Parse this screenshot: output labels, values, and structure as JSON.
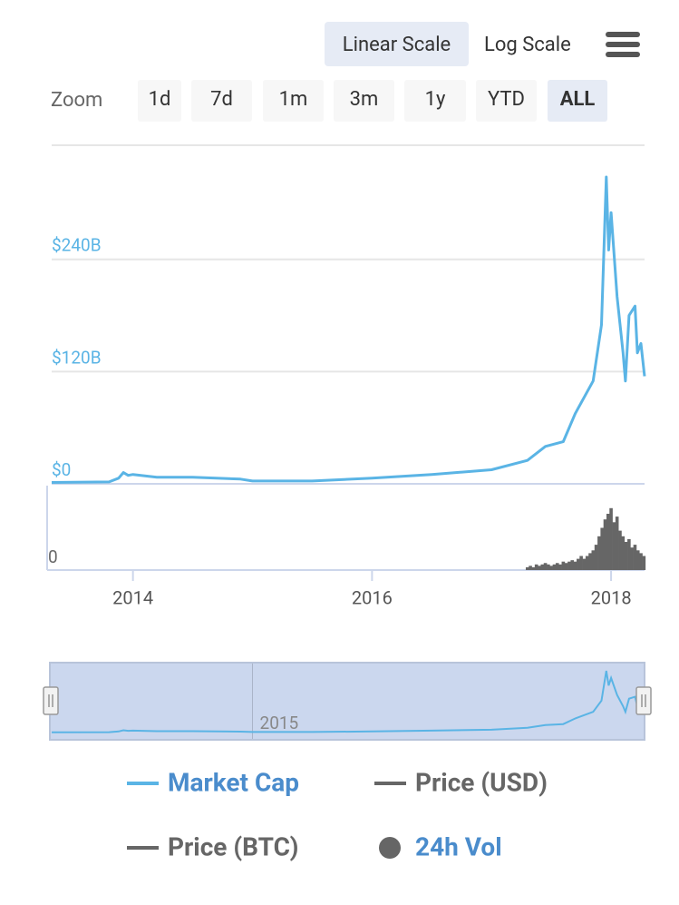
{
  "ui": {
    "scale_buttons": [
      "Linear Scale",
      "Log Scale"
    ],
    "scale_selected": 0,
    "zoom_label": "Zoom",
    "range_buttons": [
      "1d",
      "7d",
      "1m",
      "3m",
      "1y",
      "YTD",
      "ALL"
    ],
    "range_selected": 6
  },
  "chart_data": {
    "type": "line",
    "xlim": [
      2013.32,
      2018.28
    ],
    "xticks": [
      2014,
      2016,
      2018
    ],
    "ylim": [
      0,
      362
    ],
    "yticks": [
      {
        "value": 0,
        "label": "$0"
      },
      {
        "value": 120,
        "label": "$120B"
      },
      {
        "value": 240,
        "label": "$240B"
      }
    ],
    "y2lim": [
      0,
      30
    ],
    "y2ticks": [
      0
    ],
    "grid": true,
    "series": [
      {
        "name": "Market Cap",
        "color": "#5ab4e5",
        "visible": true,
        "x": [
          2013.32,
          2013.8,
          2013.88,
          2013.92,
          2013.96,
          2014.0,
          2014.2,
          2014.5,
          2014.9,
          2015.0,
          2015.5,
          2016.0,
          2016.5,
          2017.0,
          2017.3,
          2017.45,
          2017.6,
          2017.7,
          2017.85,
          2017.92,
          2017.96,
          2017.98,
          2018.0,
          2018.05,
          2018.1,
          2018.12,
          2018.15,
          2018.2,
          2018.22,
          2018.25,
          2018.28
        ],
        "values": [
          1.5,
          2,
          6,
          12,
          9,
          10,
          7,
          7,
          5,
          3,
          3,
          6,
          10,
          15,
          25,
          40,
          45,
          75,
          110,
          170,
          328,
          250,
          290,
          200,
          140,
          110,
          180,
          190,
          140,
          150,
          115
        ]
      },
      {
        "name": "Price (USD)",
        "color": "#666666",
        "visible": false
      },
      {
        "name": "Price (BTC)",
        "color": "#666666",
        "visible": false
      },
      {
        "name": "24h Vol",
        "type": "column",
        "axis": "y2",
        "color": "#666666",
        "visible": true,
        "x": [
          2017.3,
          2017.325,
          2017.35,
          2017.375,
          2017.4,
          2017.425,
          2017.45,
          2017.475,
          2017.5,
          2017.525,
          2017.55,
          2017.575,
          2017.6,
          2017.625,
          2017.65,
          2017.675,
          2017.7,
          2017.725,
          2017.75,
          2017.775,
          2017.8,
          2017.825,
          2017.85,
          2017.875,
          2017.9,
          2017.925,
          2017.95,
          2017.975,
          2018,
          2018.025,
          2018.05,
          2018.075,
          2018.1,
          2018.125,
          2018.15,
          2018.175,
          2018.2,
          2018.225,
          2018.25,
          2018.275
        ],
        "values": [
          1,
          1.5,
          1,
          2,
          1.5,
          2,
          2.5,
          2,
          1.5,
          2,
          2.5,
          2,
          3,
          2.5,
          3,
          3.5,
          3,
          4,
          5,
          4,
          5,
          6,
          7,
          9,
          12,
          15,
          18,
          20,
          22,
          17,
          19,
          14,
          12,
          10,
          11,
          8,
          9,
          7,
          6,
          5
        ]
      }
    ],
    "navigator": {
      "xticks": [
        2015
      ]
    }
  }
}
